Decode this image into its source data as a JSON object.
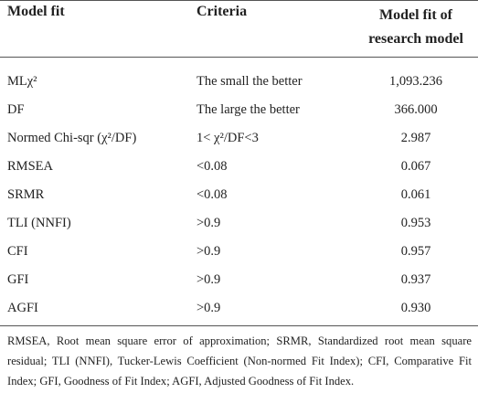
{
  "table": {
    "header": [
      "Model fit",
      "Criteria",
      "Model fit of research model"
    ],
    "rows": [
      [
        "MLχ²",
        "The small the better",
        "1,093.236"
      ],
      [
        "DF",
        "The large the better",
        "366.000"
      ],
      [
        "Normed Chi-sqr (χ²/DF)",
        "1< χ²/DF<3",
        "2.987"
      ],
      [
        "RMSEA",
        "<0.08",
        "0.067"
      ],
      [
        "SRMR",
        "<0.08",
        "0.061"
      ],
      [
        "TLI (NNFI)",
        ">0.9",
        "0.953"
      ],
      [
        "CFI",
        ">0.9",
        "0.957"
      ],
      [
        "GFI",
        ">0.9",
        "0.937"
      ],
      [
        "AGFI",
        ">0.9",
        "0.930"
      ]
    ]
  },
  "footnote": "RMSEA, Root mean square error of approximation; SRMR, Standardized root mean square residual; TLI (NNFI), Tucker-Lewis Coefficient (Non-normed Fit Index); CFI, Comparative Fit Index; GFI, Goodness of Fit Index; AGFI, Adjusted Goodness of Fit Index."
}
